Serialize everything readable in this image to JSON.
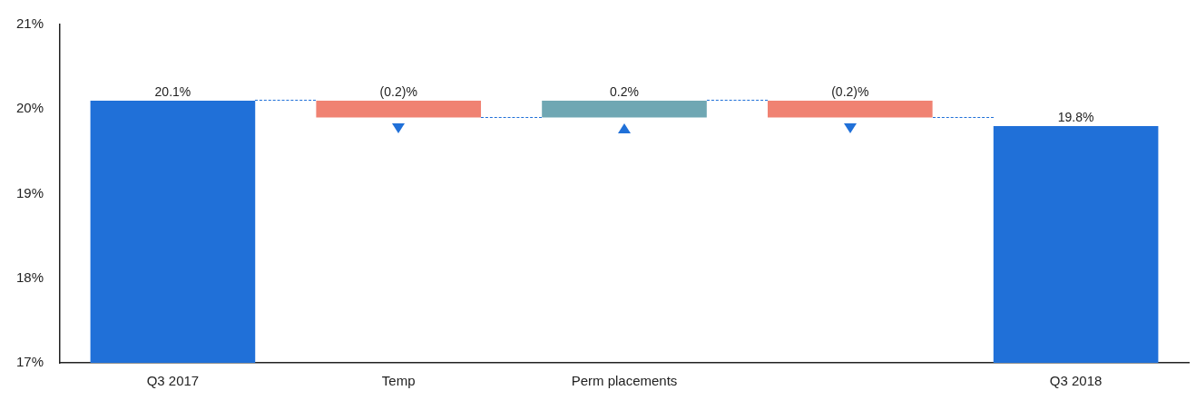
{
  "chart_data": {
    "type": "bar",
    "categories": [
      "Q3 2017",
      "Temp",
      "Perm placements",
      null,
      "Q3 2018"
    ],
    "values": [
      20.1,
      -0.2,
      0.2,
      -0.2,
      19.8
    ],
    "base": [
      null,
      20.1,
      19.9,
      20.1,
      null
    ],
    "colors": [
      "#2070d8",
      "#f08272",
      "#6fa7b3",
      "#f08272",
      "#2070d8"
    ],
    "value_labels": [
      "20.1%",
      "(0.2)%",
      "0.2%",
      "(0.2)%",
      "19.8%"
    ],
    "ylim": [
      17,
      21
    ],
    "yticks": [
      {
        "value": 17,
        "label": "17%"
      },
      {
        "value": 18,
        "label": "18%"
      },
      {
        "value": 19,
        "label": "19%"
      },
      {
        "value": 20,
        "label": "20%"
      },
      {
        "value": 21,
        "label": "21%"
      }
    ],
    "grid": false,
    "legend": false
  }
}
